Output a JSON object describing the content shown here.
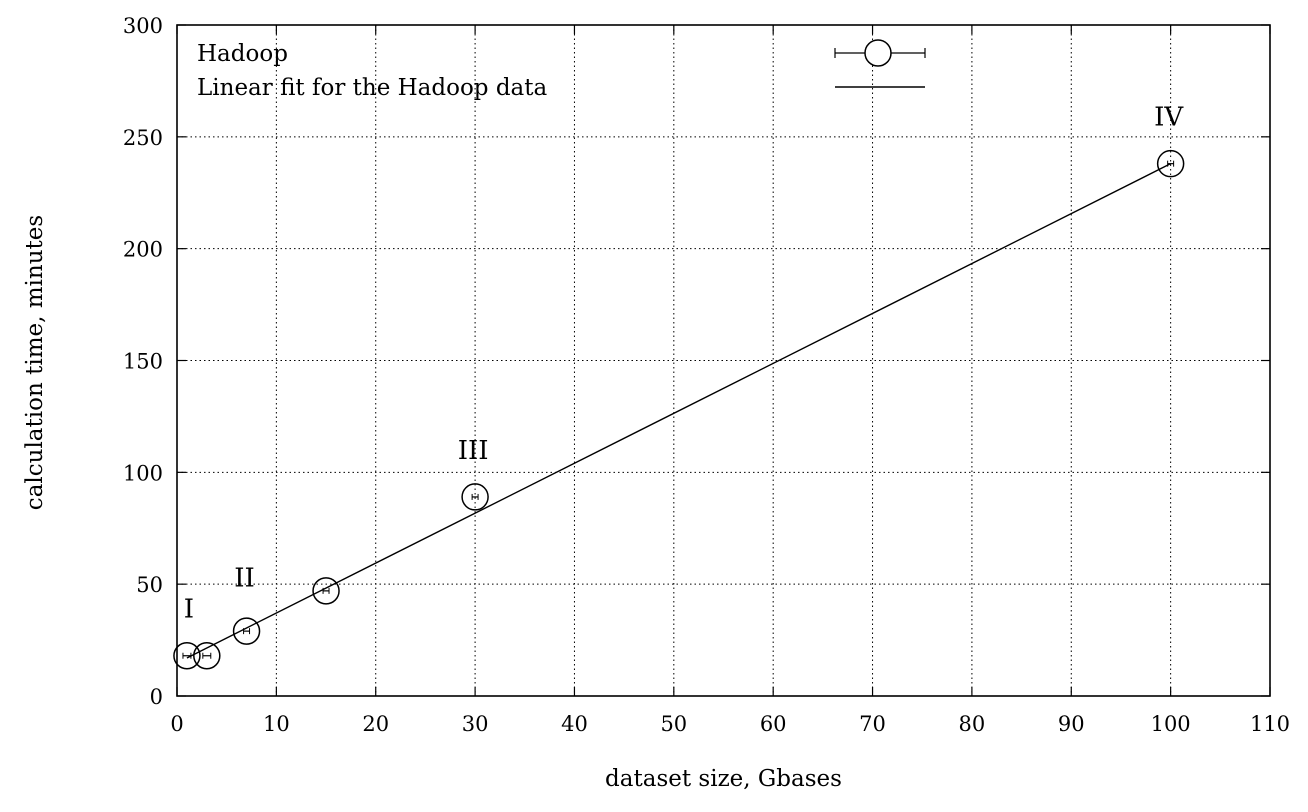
{
  "chart_data": {
    "type": "scatter",
    "title": "",
    "xlabel": "dataset size, Gbases",
    "ylabel": "calculation time, minutes",
    "xlim": [
      0,
      110
    ],
    "ylim": [
      0,
      300
    ],
    "xticks": [
      0,
      10,
      20,
      30,
      40,
      50,
      60,
      70,
      80,
      90,
      100,
      110
    ],
    "yticks": [
      0,
      50,
      100,
      150,
      200,
      250,
      300
    ],
    "grid": true,
    "legend_position": "top",
    "series": [
      {
        "name": "Hadoop",
        "kind": "points-with-xerror",
        "marker": "open-circle",
        "points": [
          {
            "x": 1,
            "y": 18,
            "xerr": 0.4
          },
          {
            "x": 3,
            "y": 18,
            "xerr": 0.4
          },
          {
            "x": 7,
            "y": 29,
            "xerr": 0.3
          },
          {
            "x": 15,
            "y": 47,
            "xerr": 0.3
          },
          {
            "x": 30,
            "y": 89,
            "xerr": 0.3
          },
          {
            "x": 100,
            "y": 238,
            "xerr": 0.3
          }
        ]
      },
      {
        "name": "Linear fit for the Hadoop data",
        "kind": "line",
        "points": [
          {
            "x": 1,
            "y": 17
          },
          {
            "x": 100,
            "y": 238
          }
        ]
      }
    ],
    "annotations": [
      {
        "text": "I",
        "x": 1.2,
        "y": 35
      },
      {
        "text": "II",
        "x": 6.8,
        "y": 49
      },
      {
        "text": "III",
        "x": 29.8,
        "y": 106
      },
      {
        "text": "IV",
        "x": 99.8,
        "y": 255
      }
    ]
  }
}
